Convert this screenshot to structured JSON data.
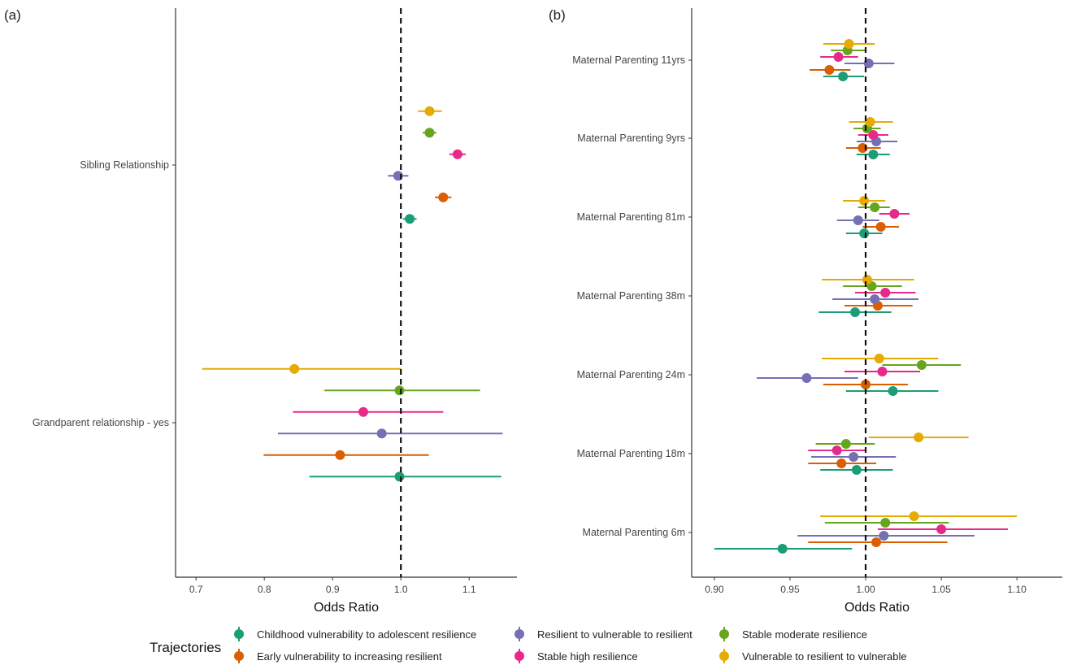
{
  "colors": {
    "teal": "#1b9e77",
    "orange": "#d95f02",
    "purple": "#7570b3",
    "pink": "#e7298a",
    "green": "#66a61e",
    "gold": "#e6ab02",
    "axis": "#333333",
    "ref_line": "#111111"
  },
  "legend": {
    "title": "Trajectories",
    "items": [
      {
        "label": "Childhood vulnerability to adolescent resilience",
        "color": "#1b9e77"
      },
      {
        "label": "Early vulnerability to increasing resilient",
        "color": "#d95f02"
      },
      {
        "label": "Resilient to vulnerable to resilient",
        "color": "#7570b3"
      },
      {
        "label": "Stable high resilience",
        "color": "#e7298a"
      },
      {
        "label": "Stable moderate resilience",
        "color": "#66a61e"
      },
      {
        "label": "Vulnerable to resilient to vulnerable",
        "color": "#e6ab02"
      }
    ]
  },
  "chart_data": [
    {
      "type": "scatter",
      "panel": "(a)",
      "xlabel": "Odds Ratio",
      "xlim": [
        0.67,
        1.17
      ],
      "xticks": [
        "0.7",
        "0.8",
        "0.9",
        "1.0",
        "1.1"
      ],
      "xtick_values": [
        0.7,
        0.8,
        0.9,
        1.0,
        1.1
      ],
      "reference_line": 1.0,
      "categories": [
        "Sibling Relationship",
        "Grandparent relationship - yes"
      ],
      "series": [
        {
          "name": "Childhood vulnerability to adolescent resilience",
          "color": "#1b9e77",
          "points": [
            {
              "category": "Sibling Relationship",
              "or": 1.013,
              "lo": 1.003,
              "hi": 1.023
            },
            {
              "category": "Grandparent relationship - yes",
              "or": 0.998,
              "lo": 0.866,
              "hi": 1.147
            }
          ]
        },
        {
          "name": "Early vulnerability to increasing resilient",
          "color": "#d95f02",
          "points": [
            {
              "category": "Sibling Relationship",
              "or": 1.062,
              "lo": 1.05,
              "hi": 1.074
            },
            {
              "category": "Grandparent relationship - yes",
              "or": 0.911,
              "lo": 0.799,
              "hi": 1.041
            }
          ]
        },
        {
          "name": "Resilient to vulnerable to resilient",
          "color": "#7570b3",
          "points": [
            {
              "category": "Sibling Relationship",
              "or": 0.996,
              "lo": 0.981,
              "hi": 1.011
            },
            {
              "category": "Grandparent relationship - yes",
              "or": 0.972,
              "lo": 0.82,
              "hi": 1.149
            }
          ]
        },
        {
          "name": "Stable high resilience",
          "color": "#e7298a",
          "points": [
            {
              "category": "Sibling Relationship",
              "or": 1.083,
              "lo": 1.071,
              "hi": 1.095
            },
            {
              "category": "Grandparent relationship - yes",
              "or": 0.945,
              "lo": 0.842,
              "hi": 1.062
            }
          ]
        },
        {
          "name": "Stable moderate resilience",
          "color": "#66a61e",
          "points": [
            {
              "category": "Sibling Relationship",
              "or": 1.042,
              "lo": 1.032,
              "hi": 1.052
            },
            {
              "category": "Grandparent relationship - yes",
              "or": 0.998,
              "lo": 0.888,
              "hi": 1.116
            }
          ]
        },
        {
          "name": "Vulnerable to resilient to vulnerable",
          "color": "#e6ab02",
          "points": [
            {
              "category": "Sibling Relationship",
              "or": 1.042,
              "lo": 1.025,
              "hi": 1.06
            },
            {
              "category": "Grandparent relationship - yes",
              "or": 0.844,
              "lo": 0.709,
              "hi": 1.0
            }
          ]
        }
      ]
    },
    {
      "type": "scatter",
      "panel": "(b)",
      "xlabel": "Odds Ratio",
      "xlim": [
        0.885,
        1.13
      ],
      "xticks": [
        "0.90",
        "0.95",
        "1.00",
        "1.05",
        "1.10"
      ],
      "xtick_values": [
        0.9,
        0.95,
        1.0,
        1.05,
        1.1
      ],
      "reference_line": 1.0,
      "categories": [
        "Maternal Parenting 11yrs",
        "Maternal Parenting 9yrs",
        "Maternal Parenting 81m",
        "Maternal Parenting 38m",
        "Maternal Parenting 24m",
        "Maternal Parenting 18m",
        "Maternal Parenting 6m"
      ],
      "series": [
        {
          "name": "Childhood vulnerability to adolescent resilience",
          "color": "#1b9e77",
          "points": [
            {
              "category": "Maternal Parenting 11yrs",
              "or": 0.985,
              "lo": 0.972,
              "hi": 0.999
            },
            {
              "category": "Maternal Parenting 9yrs",
              "or": 1.005,
              "lo": 0.994,
              "hi": 1.016
            },
            {
              "category": "Maternal Parenting 81m",
              "or": 0.999,
              "lo": 0.987,
              "hi": 1.011
            },
            {
              "category": "Maternal Parenting 38m",
              "or": 0.993,
              "lo": 0.969,
              "hi": 1.017
            },
            {
              "category": "Maternal Parenting 24m",
              "or": 1.018,
              "lo": 0.987,
              "hi": 1.048
            },
            {
              "category": "Maternal Parenting 18m",
              "or": 0.994,
              "lo": 0.97,
              "hi": 1.018
            },
            {
              "category": "Maternal Parenting 6m",
              "or": 0.945,
              "lo": 0.9,
              "hi": 0.991
            }
          ]
        },
        {
          "name": "Early vulnerability to increasing resilient",
          "color": "#d95f02",
          "points": [
            {
              "category": "Maternal Parenting 11yrs",
              "or": 0.976,
              "lo": 0.963,
              "hi": 0.99
            },
            {
              "category": "Maternal Parenting 9yrs",
              "or": 0.998,
              "lo": 0.987,
              "hi": 1.01
            },
            {
              "category": "Maternal Parenting 81m",
              "or": 1.01,
              "lo": 0.998,
              "hi": 1.022
            },
            {
              "category": "Maternal Parenting 38m",
              "or": 1.008,
              "lo": 0.986,
              "hi": 1.031
            },
            {
              "category": "Maternal Parenting 24m",
              "or": 1.0,
              "lo": 0.972,
              "hi": 1.028
            },
            {
              "category": "Maternal Parenting 18m",
              "or": 0.984,
              "lo": 0.962,
              "hi": 1.007
            },
            {
              "category": "Maternal Parenting 6m",
              "or": 1.007,
              "lo": 0.962,
              "hi": 1.054
            }
          ]
        },
        {
          "name": "Resilient to vulnerable to resilient",
          "color": "#7570b3",
          "points": [
            {
              "category": "Maternal Parenting 11yrs",
              "or": 1.002,
              "lo": 0.986,
              "hi": 1.019
            },
            {
              "category": "Maternal Parenting 9yrs",
              "or": 1.007,
              "lo": 0.994,
              "hi": 1.021
            },
            {
              "category": "Maternal Parenting 81m",
              "or": 0.995,
              "lo": 0.981,
              "hi": 1.009
            },
            {
              "category": "Maternal Parenting 38m",
              "or": 1.006,
              "lo": 0.978,
              "hi": 1.035
            },
            {
              "category": "Maternal Parenting 24m",
              "or": 0.961,
              "lo": 0.928,
              "hi": 0.995
            },
            {
              "category": "Maternal Parenting 18m",
              "or": 0.992,
              "lo": 0.964,
              "hi": 1.02
            },
            {
              "category": "Maternal Parenting 6m",
              "or": 1.012,
              "lo": 0.955,
              "hi": 1.072
            }
          ]
        },
        {
          "name": "Stable high resilience",
          "color": "#e7298a",
          "points": [
            {
              "category": "Maternal Parenting 11yrs",
              "or": 0.982,
              "lo": 0.97,
              "hi": 0.995
            },
            {
              "category": "Maternal Parenting 9yrs",
              "or": 1.005,
              "lo": 0.995,
              "hi": 1.015
            },
            {
              "category": "Maternal Parenting 81m",
              "or": 1.019,
              "lo": 1.009,
              "hi": 1.029
            },
            {
              "category": "Maternal Parenting 38m",
              "or": 1.013,
              "lo": 0.993,
              "hi": 1.033
            },
            {
              "category": "Maternal Parenting 24m",
              "or": 1.011,
              "lo": 0.986,
              "hi": 1.036
            },
            {
              "category": "Maternal Parenting 18m",
              "or": 0.981,
              "lo": 0.962,
              "hi": 1.0
            },
            {
              "category": "Maternal Parenting 6m",
              "or": 1.05,
              "lo": 1.008,
              "hi": 1.094
            }
          ]
        },
        {
          "name": "Stable moderate resilience",
          "color": "#66a61e",
          "points": [
            {
              "category": "Maternal Parenting 11yrs",
              "or": 0.988,
              "lo": 0.977,
              "hi": 1.0
            },
            {
              "category": "Maternal Parenting 9yrs",
              "or": 1.001,
              "lo": 0.992,
              "hi": 1.01
            },
            {
              "category": "Maternal Parenting 81m",
              "or": 1.006,
              "lo": 0.995,
              "hi": 1.016
            },
            {
              "category": "Maternal Parenting 38m",
              "or": 1.004,
              "lo": 0.985,
              "hi": 1.024
            },
            {
              "category": "Maternal Parenting 24m",
              "or": 1.037,
              "lo": 1.011,
              "hi": 1.063
            },
            {
              "category": "Maternal Parenting 18m",
              "or": 0.987,
              "lo": 0.967,
              "hi": 1.006
            },
            {
              "category": "Maternal Parenting 6m",
              "or": 1.013,
              "lo": 0.973,
              "hi": 1.055
            }
          ]
        },
        {
          "name": "Vulnerable to resilient to vulnerable",
          "color": "#e6ab02",
          "points": [
            {
              "category": "Maternal Parenting 11yrs",
              "or": 0.989,
              "lo": 0.972,
              "hi": 1.006
            },
            {
              "category": "Maternal Parenting 9yrs",
              "or": 1.003,
              "lo": 0.989,
              "hi": 1.018
            },
            {
              "category": "Maternal Parenting 81m",
              "or": 0.999,
              "lo": 0.985,
              "hi": 1.013
            },
            {
              "category": "Maternal Parenting 38m",
              "or": 1.001,
              "lo": 0.971,
              "hi": 1.032
            },
            {
              "category": "Maternal Parenting 24m",
              "or": 1.009,
              "lo": 0.971,
              "hi": 1.048
            },
            {
              "category": "Maternal Parenting 18m",
              "or": 1.035,
              "lo": 1.002,
              "hi": 1.068
            },
            {
              "category": "Maternal Parenting 6m",
              "or": 1.032,
              "lo": 0.97,
              "hi": 1.1
            }
          ]
        }
      ]
    }
  ]
}
